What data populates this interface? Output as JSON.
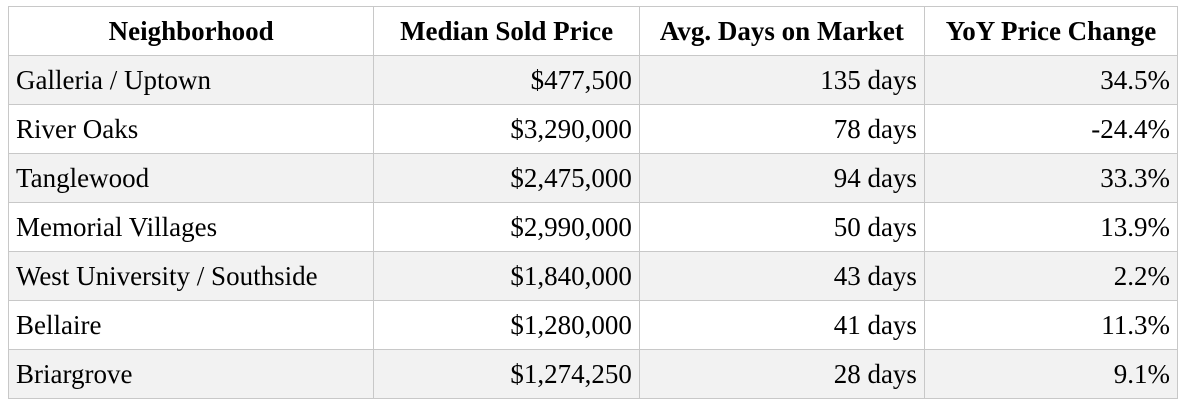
{
  "table": {
    "headers": [
      "Neighborhood",
      "Median Sold Price",
      "Avg. Days on Market",
      "YoY Price Change"
    ],
    "rows": [
      {
        "neighborhood": "Galleria / Uptown",
        "median_price": "$477,500",
        "days_on_market": "135 days",
        "yoy_change": "34.5%"
      },
      {
        "neighborhood": "River Oaks",
        "median_price": "$3,290,000",
        "days_on_market": "78 days",
        "yoy_change": "-24.4%"
      },
      {
        "neighborhood": "Tanglewood",
        "median_price": "$2,475,000",
        "days_on_market": "94 days",
        "yoy_change": "33.3%"
      },
      {
        "neighborhood": "Memorial Villages",
        "median_price": "$2,990,000",
        "days_on_market": "50 days",
        "yoy_change": "13.9%"
      },
      {
        "neighborhood": "West University / Southside",
        "median_price": "$1,840,000",
        "days_on_market": "43 days",
        "yoy_change": "2.2%"
      },
      {
        "neighborhood": "Bellaire",
        "median_price": "$1,280,000",
        "days_on_market": "41 days",
        "yoy_change": "11.3%"
      },
      {
        "neighborhood": "Briargrove",
        "median_price": "$1,274,250",
        "days_on_market": "28 days",
        "yoy_change": "9.1%"
      }
    ]
  },
  "colors": {
    "border": "#c8c8c8",
    "stripe": "#f2f2f2",
    "background": "#ffffff"
  }
}
